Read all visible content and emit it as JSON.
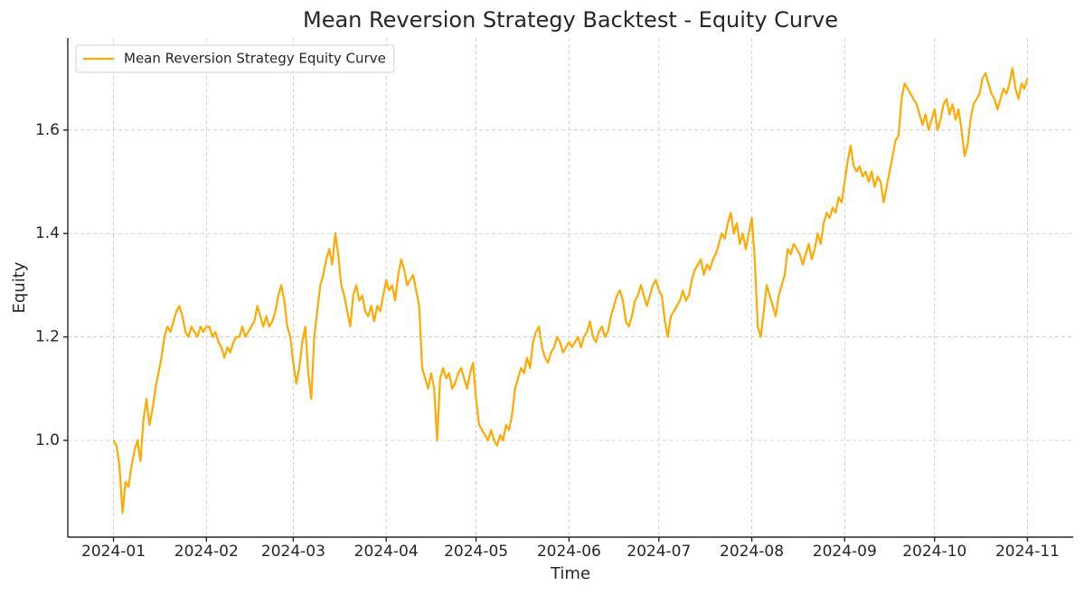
{
  "chart_data": {
    "type": "line",
    "title": "Mean Reversion Strategy Backtest - Equity Curve",
    "xlabel": "Time",
    "ylabel": "Equity",
    "legend": "upper left",
    "grid": true,
    "xlim": [
      -15.25,
      320.25
    ],
    "xticks": [
      {
        "value": 0,
        "label": "2024-01"
      },
      {
        "value": 31,
        "label": "2024-02"
      },
      {
        "value": 60,
        "label": "2024-03"
      },
      {
        "value": 91,
        "label": "2024-04"
      },
      {
        "value": 121,
        "label": "2024-05"
      },
      {
        "value": 152,
        "label": "2024-06"
      },
      {
        "value": 182,
        "label": "2024-07"
      },
      {
        "value": 213,
        "label": "2024-08"
      },
      {
        "value": 244,
        "label": "2024-09"
      },
      {
        "value": 274,
        "label": "2024-10"
      },
      {
        "value": 305,
        "label": "2024-11"
      }
    ],
    "ylim": [
      0.813,
      1.778
    ],
    "yticks": [
      {
        "value": 1,
        "label": "1.0"
      },
      1.2,
      1.4,
      1.6
    ],
    "x": [
      0,
      1,
      2,
      3,
      4,
      5,
      6,
      7,
      8,
      9,
      10,
      11,
      12,
      13,
      14,
      15,
      16,
      17,
      18,
      19,
      20,
      21,
      22,
      23,
      24,
      25,
      26,
      27,
      28,
      29,
      30,
      31,
      32,
      33,
      34,
      35,
      36,
      37,
      38,
      39,
      40,
      41,
      42,
      43,
      44,
      45,
      46,
      47,
      48,
      49,
      50,
      51,
      52,
      53,
      54,
      55,
      56,
      57,
      58,
      59,
      60,
      61,
      62,
      63,
      64,
      65,
      66,
      67,
      68,
      69,
      70,
      71,
      72,
      73,
      74,
      75,
      76,
      77,
      78,
      79,
      80,
      81,
      82,
      83,
      84,
      85,
      86,
      87,
      88,
      89,
      90,
      91,
      92,
      93,
      94,
      95,
      96,
      97,
      98,
      99,
      100,
      101,
      102,
      103,
      104,
      105,
      106,
      107,
      108,
      109,
      110,
      111,
      112,
      113,
      114,
      115,
      116,
      117,
      118,
      119,
      120,
      121,
      122,
      123,
      124,
      125,
      126,
      127,
      128,
      129,
      130,
      131,
      132,
      133,
      134,
      135,
      136,
      137,
      138,
      139,
      140,
      141,
      142,
      143,
      144,
      145,
      146,
      147,
      148,
      149,
      150,
      151,
      152,
      153,
      154,
      155,
      156,
      157,
      158,
      159,
      160,
      161,
      162,
      163,
      164,
      165,
      166,
      167,
      168,
      169,
      170,
      171,
      172,
      173,
      174,
      175,
      176,
      177,
      178,
      179,
      180,
      181,
      182,
      183,
      184,
      185,
      186,
      187,
      188,
      189,
      190,
      191,
      192,
      193,
      194,
      195,
      196,
      197,
      198,
      199,
      200,
      201,
      202,
      203,
      204,
      205,
      206,
      207,
      208,
      209,
      210,
      211,
      212,
      213,
      214,
      215,
      216,
      217,
      218,
      219,
      220,
      221,
      222,
      223,
      224,
      225,
      226,
      227,
      228,
      229,
      230,
      231,
      232,
      233,
      234,
      235,
      236,
      237,
      238,
      239,
      240,
      241,
      242,
      243,
      244,
      245,
      246,
      247,
      248,
      249,
      250,
      251,
      252,
      253,
      254,
      255,
      256,
      257,
      258,
      259,
      260,
      261,
      262,
      263,
      264,
      265,
      266,
      267,
      268,
      269,
      270,
      271,
      272,
      273,
      274,
      275,
      276,
      277,
      278,
      279,
      280,
      281,
      282,
      283,
      284,
      285,
      286,
      287,
      288,
      289,
      290,
      291,
      292,
      293,
      294,
      295,
      296,
      297,
      298,
      299,
      300,
      301,
      302,
      303,
      304,
      305
    ],
    "series": [
      {
        "name": "Mean Reversion Strategy Equity Curve",
        "color": "#ffaa00",
        "values": [
          1.0,
          0.99,
          0.95,
          0.86,
          0.92,
          0.91,
          0.95,
          0.98,
          1.0,
          0.96,
          1.04,
          1.08,
          1.03,
          1.06,
          1.1,
          1.13,
          1.16,
          1.2,
          1.22,
          1.21,
          1.23,
          1.25,
          1.26,
          1.24,
          1.21,
          1.2,
          1.22,
          1.21,
          1.2,
          1.22,
          1.21,
          1.22,
          1.22,
          1.2,
          1.21,
          1.19,
          1.18,
          1.16,
          1.18,
          1.17,
          1.19,
          1.2,
          1.2,
          1.22,
          1.2,
          1.21,
          1.22,
          1.23,
          1.26,
          1.24,
          1.22,
          1.24,
          1.22,
          1.23,
          1.25,
          1.28,
          1.3,
          1.27,
          1.22,
          1.2,
          1.15,
          1.11,
          1.14,
          1.19,
          1.22,
          1.13,
          1.08,
          1.2,
          1.25,
          1.3,
          1.32,
          1.35,
          1.37,
          1.34,
          1.4,
          1.36,
          1.3,
          1.28,
          1.25,
          1.22,
          1.28,
          1.3,
          1.27,
          1.28,
          1.25,
          1.24,
          1.26,
          1.23,
          1.26,
          1.25,
          1.28,
          1.31,
          1.29,
          1.3,
          1.27,
          1.32,
          1.35,
          1.33,
          1.3,
          1.31,
          1.32,
          1.29,
          1.26,
          1.14,
          1.12,
          1.1,
          1.13,
          1.1,
          1.0,
          1.12,
          1.14,
          1.12,
          1.13,
          1.1,
          1.11,
          1.13,
          1.14,
          1.12,
          1.1,
          1.13,
          1.15,
          1.08,
          1.03,
          1.02,
          1.01,
          1.0,
          1.02,
          1.0,
          0.99,
          1.01,
          1.0,
          1.03,
          1.02,
          1.05,
          1.1,
          1.12,
          1.14,
          1.13,
          1.16,
          1.14,
          1.19,
          1.21,
          1.22,
          1.18,
          1.16,
          1.15,
          1.17,
          1.18,
          1.2,
          1.19,
          1.17,
          1.18,
          1.19,
          1.18,
          1.19,
          1.2,
          1.18,
          1.2,
          1.21,
          1.23,
          1.2,
          1.19,
          1.21,
          1.22,
          1.2,
          1.21,
          1.24,
          1.26,
          1.28,
          1.29,
          1.27,
          1.23,
          1.22,
          1.24,
          1.27,
          1.28,
          1.3,
          1.28,
          1.26,
          1.28,
          1.3,
          1.31,
          1.29,
          1.28,
          1.23,
          1.2,
          1.24,
          1.25,
          1.26,
          1.27,
          1.29,
          1.27,
          1.28,
          1.31,
          1.33,
          1.34,
          1.35,
          1.32,
          1.34,
          1.33,
          1.35,
          1.36,
          1.38,
          1.4,
          1.39,
          1.42,
          1.44,
          1.4,
          1.42,
          1.38,
          1.4,
          1.37,
          1.4,
          1.43,
          1.35,
          1.22,
          1.2,
          1.25,
          1.3,
          1.28,
          1.26,
          1.24,
          1.28,
          1.3,
          1.32,
          1.37,
          1.36,
          1.38,
          1.37,
          1.36,
          1.34,
          1.36,
          1.38,
          1.35,
          1.37,
          1.4,
          1.38,
          1.42,
          1.44,
          1.43,
          1.45,
          1.44,
          1.47,
          1.46,
          1.5,
          1.54,
          1.57,
          1.53,
          1.52,
          1.53,
          1.51,
          1.52,
          1.5,
          1.52,
          1.49,
          1.51,
          1.5,
          1.46,
          1.49,
          1.52,
          1.55,
          1.58,
          1.59,
          1.66,
          1.69,
          1.68,
          1.67,
          1.66,
          1.65,
          1.63,
          1.61,
          1.63,
          1.6,
          1.62,
          1.64,
          1.6,
          1.62,
          1.65,
          1.66,
          1.63,
          1.65,
          1.62,
          1.64,
          1.6,
          1.55,
          1.57,
          1.62,
          1.65,
          1.66,
          1.67,
          1.7,
          1.71,
          1.69,
          1.67,
          1.66,
          1.64,
          1.66,
          1.68,
          1.67,
          1.69,
          1.72,
          1.68,
          1.66,
          1.69,
          1.68,
          1.7
        ]
      }
    ]
  }
}
